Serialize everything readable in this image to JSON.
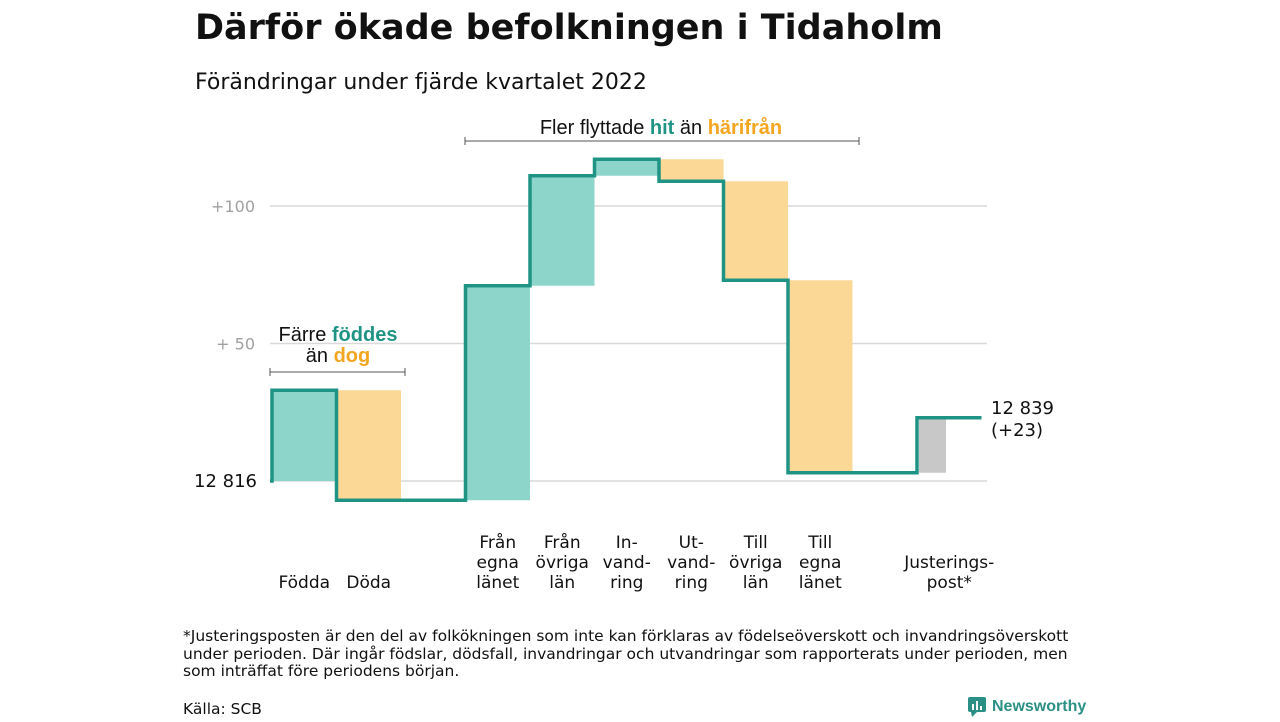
{
  "title": "Därför ökade befolkningen i Tidaholm",
  "subtitle": "Förändringar under fjärde kvartalet 2022",
  "colors": {
    "in": "#8dd5ca",
    "out": "#fbd896",
    "adjust": "#c8c8c8",
    "line": "#1f9485",
    "grid": "#d9d9d9",
    "accent_in": "#1f9485",
    "accent_out": "#f4a621"
  },
  "annotations": {
    "births": {
      "pre": "Färre ",
      "hi1": "föddes",
      "line2_pre": "än ",
      "hi2": "dog"
    },
    "migration": {
      "pre": "Fler flyttade ",
      "hi1": "hit",
      "mid": " än ",
      "hi2": "härifrån"
    }
  },
  "footnote": "*Justeringsposten är den del av folkökningen som inte kan förklaras av födelseöverskott och invandringsöverskott under perioden. Där ingår födslar, dödsfall, invandringar och utvandringar som rapporterats under perioden, men som inträffat före periodens början.",
  "source": "Källa: SCB",
  "brand": "Newsworthy",
  "chart_data": {
    "type": "waterfall",
    "start_label": "12 816",
    "end_label_1": "12 839",
    "end_label_2": "(+23)",
    "yticks": [
      {
        "value": 100,
        "label": "+100"
      },
      {
        "value": 50,
        "label": "+ 50"
      }
    ],
    "ylim": [
      -7,
      117
    ],
    "steps": [
      {
        "category": "Födda",
        "lines": [
          "Födda"
        ],
        "value": 33,
        "kind": "in"
      },
      {
        "category": "Döda",
        "lines": [
          "Döda"
        ],
        "value": -40,
        "kind": "out"
      },
      {
        "category": "",
        "lines": [],
        "value": 0,
        "kind": "gap"
      },
      {
        "category": "Från egna länet",
        "lines": [
          "Från",
          "egna",
          "länet"
        ],
        "value": 78,
        "kind": "in"
      },
      {
        "category": "Från övriga län",
        "lines": [
          "Från",
          "övriga",
          "län"
        ],
        "value": 40,
        "kind": "in"
      },
      {
        "category": "In-vandring",
        "lines": [
          "In-",
          "vand-",
          "ring"
        ],
        "value": 6,
        "kind": "in"
      },
      {
        "category": "Ut-vandring",
        "lines": [
          "Ut-",
          "vand-",
          "ring"
        ],
        "value": -8,
        "kind": "out"
      },
      {
        "category": "Till övriga län",
        "lines": [
          "Till",
          "övriga",
          "län"
        ],
        "value": -36,
        "kind": "out"
      },
      {
        "category": "Till egna länet",
        "lines": [
          "Till",
          "egna",
          "länet"
        ],
        "value": -70,
        "kind": "out"
      },
      {
        "category": "",
        "lines": [],
        "value": 0,
        "kind": "gap"
      },
      {
        "category": "Justerings-post*",
        "lines": [
          "Justerings-",
          "post*"
        ],
        "value": 20,
        "kind": "adjust"
      }
    ]
  }
}
